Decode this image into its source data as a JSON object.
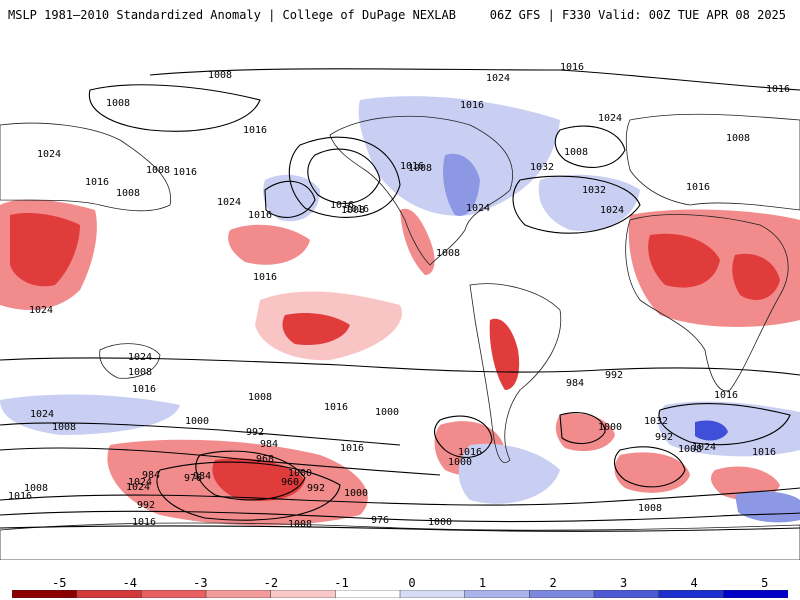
{
  "header": {
    "left_title": "MSLP 1981–2010 Standardized Anomaly | College of DuPage NEXLAB",
    "right_title": "06Z GFS | F330 Valid: 00Z TUE APR 08 2025"
  },
  "colorbar": {
    "ticks": [
      "-5",
      "-4",
      "-3",
      "-2",
      "-1",
      "0",
      "1",
      "2",
      "3",
      "4",
      "5"
    ],
    "colors": [
      "#8b0000",
      "#d23a3a",
      "#e86060",
      "#f39a9a",
      "#f9c9c9",
      "#ffffff",
      "#d7dcf5",
      "#aab3ea",
      "#7c87de",
      "#4c5bd4",
      "#1e2fcf",
      "#0000c8"
    ]
  },
  "map": {
    "anomaly_colors": {
      "strong_positive": "#e03c3c",
      "positive": "#f28c8c",
      "weak_positive": "#f9c4c4",
      "weak_negative": "#c9cff2",
      "negative": "#8d98e4",
      "strong_negative": "#3f4fd8"
    },
    "isobar_labels": [
      "1008",
      "1024",
      "1016",
      "1008",
      "1016",
      "1024",
      "1016",
      "1016",
      "1008",
      "1024",
      "1016",
      "1008",
      "1016",
      "1024",
      "1016",
      "1032",
      "1032",
      "1024",
      "1008",
      "1016",
      "1024",
      "1008",
      "1016",
      "1008",
      "1008",
      "1016",
      "1008",
      "1016",
      "1024",
      "1016",
      "1024",
      "1008",
      "1024",
      "1008",
      "1016",
      "1000",
      "992",
      "984",
      "968",
      "1008",
      "1016",
      "1000",
      "992",
      "1000",
      "984",
      "976",
      "960",
      "1000",
      "1024",
      "1016",
      "1008",
      "992",
      "984",
      "976",
      "1000",
      "1016",
      "1008",
      "1016",
      "1024",
      "1016",
      "1000",
      "984",
      "992",
      "1000",
      "992",
      "1024",
      "1008",
      "1032",
      "1016",
      "1016",
      "1008"
    ]
  }
}
